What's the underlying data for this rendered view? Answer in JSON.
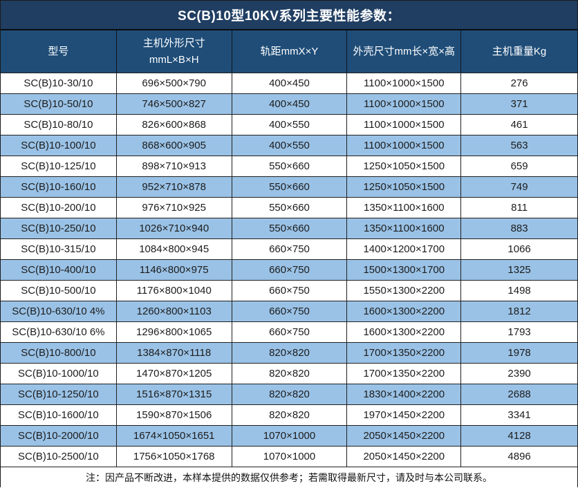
{
  "title": "SC(B)10型10KV系列主要性能参数：",
  "table": {
    "headers": [
      "型号",
      "主机外形尺寸\nmmL×B×H",
      "轨距mmX×Y",
      "外壳尺寸mm长×宽×高",
      "主机重量Kg"
    ],
    "rows": [
      [
        "SC(B)10-30/10",
        "696×500×790",
        "400×450",
        "1100×1000×1500",
        "276"
      ],
      [
        "SC(B)10-50/10",
        "746×500×827",
        "400×450",
        "1100×1000×1500",
        "371"
      ],
      [
        "SC(B)10-80/10",
        "826×600×868",
        "400×550",
        "1100×1000×1500",
        "461"
      ],
      [
        "SC(B)10-100/10",
        "868×600×905",
        "400×550",
        "1100×1000×1500",
        "563"
      ],
      [
        "SC(B)10-125/10",
        "898×710×913",
        "550×660",
        "1250×1050×1500",
        "659"
      ],
      [
        "SC(B)10-160/10",
        "952×710×878",
        "550×660",
        "1250×1050×1500",
        "749"
      ],
      [
        "SC(B)10-200/10",
        "976×710×925",
        "550×660",
        "1350×1100×1600",
        "811"
      ],
      [
        "SC(B)10-250/10",
        "1026×710×940",
        "550×660",
        "1350×1100×1600",
        "883"
      ],
      [
        "SC(B)10-315/10",
        "1084×800×945",
        "660×750",
        "1400×1200×1700",
        "1066"
      ],
      [
        "SC(B)10-400/10",
        "1146×800×975",
        "660×750",
        "1500×1300×1700",
        "1325"
      ],
      [
        "SC(B)10-500/10",
        "1176×800×1040",
        "660×750",
        "1550×1300×2200",
        "1498"
      ],
      [
        "SC(B)10-630/10 4%",
        "1260×800×1103",
        "660×750",
        "1600×1300×2200",
        "1812"
      ],
      [
        "SC(B)10-630/10 6%",
        "1296×800×1065",
        "660×750",
        "1600×1300×2200",
        "1793"
      ],
      [
        "SC(B)10-800/10",
        "1384×870×1118",
        "820×820",
        "1700×1350×2200",
        "1978"
      ],
      [
        "SC(B)10-1000/10",
        "1470×870×1205",
        "820×820",
        "1700×1350×2200",
        "2390"
      ],
      [
        "SC(B)10-1250/10",
        "1516×870×1315",
        "820×820",
        "1830×1400×2200",
        "2688"
      ],
      [
        "SC(B)10-1600/10",
        "1590×870×1506",
        "820×820",
        "1970×1450×2200",
        "3341"
      ],
      [
        "SC(B)10-2000/10",
        "1674×1050×1651",
        "1070×1000",
        "2050×1450×2200",
        "4128"
      ],
      [
        "SC(B)10-2500/10",
        "1756×1050×1768",
        "1070×1000",
        "2050×1450×2200",
        "4896"
      ]
    ]
  },
  "note": "注：因产品不断改进，本样本提供的数据仅供参考；若需取得最新尺寸，请及时与本公司联系。",
  "colors": {
    "title_bg": "#203E62",
    "header_bg": "#1F4D78",
    "row_bg": "#FFFFFF",
    "row_alt_bg": "#9AC2E6",
    "border": "#1F1F1F",
    "header_text": "#FFFFFF",
    "body_text": "#1C1C1C"
  }
}
